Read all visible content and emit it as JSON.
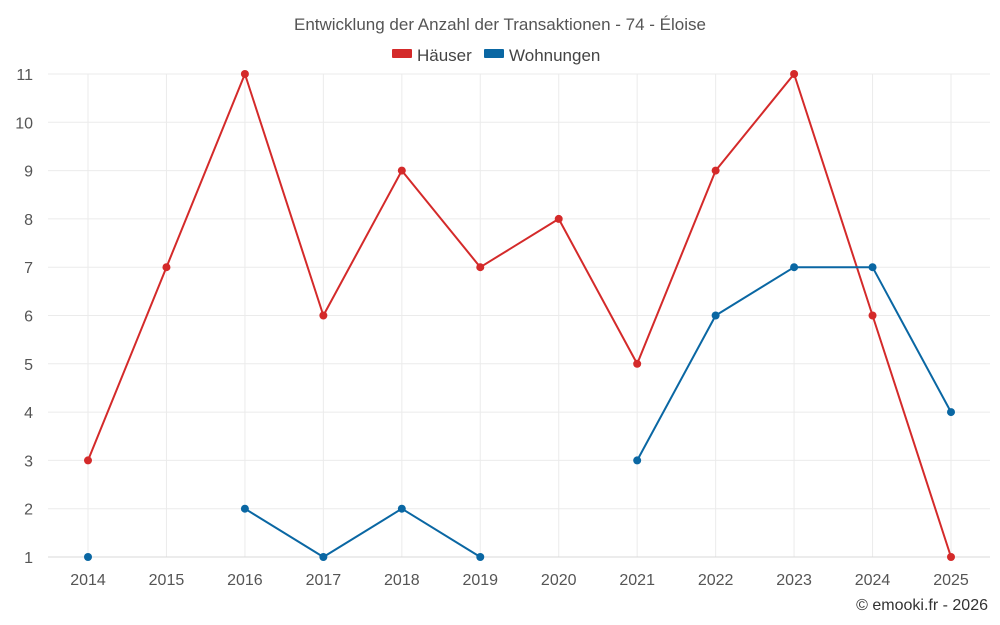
{
  "chart_data": {
    "type": "line",
    "title": "Entwicklung der Anzahl der Transaktionen - 74 - Éloise",
    "x": [
      "2014",
      "2015",
      "2016",
      "2017",
      "2018",
      "2019",
      "2020",
      "2021",
      "2022",
      "2023",
      "2024",
      "2025"
    ],
    "ylim": [
      1,
      11
    ],
    "yticks": [
      "1",
      "2",
      "3",
      "4",
      "5",
      "6",
      "7",
      "8",
      "9",
      "10",
      "11"
    ],
    "grid": true,
    "legend_position": "top-center",
    "series": [
      {
        "name": "Häuser",
        "color": "#d42a2a",
        "values": [
          3,
          7,
          11,
          6,
          9,
          7,
          8,
          5,
          9,
          11,
          6,
          1
        ]
      },
      {
        "name": "Wohnungen",
        "color": "#0a67a3",
        "values": [
          1,
          null,
          2,
          1,
          2,
          1,
          null,
          3,
          6,
          7,
          7,
          4
        ]
      }
    ],
    "xlabel": "",
    "ylabel": ""
  },
  "credit": "© emooki.fr - 2026"
}
